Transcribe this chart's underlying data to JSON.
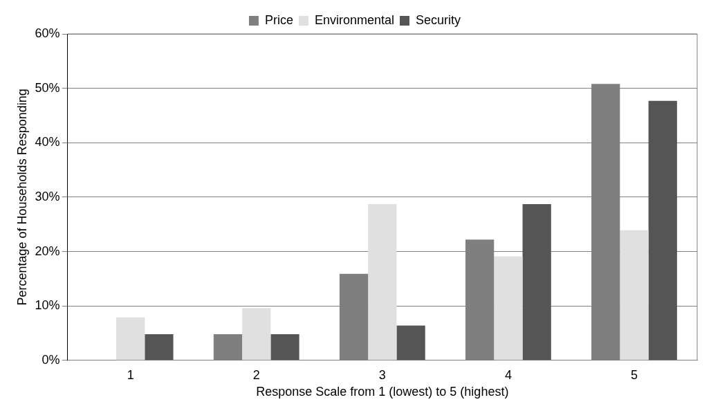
{
  "chart_data": {
    "type": "bar",
    "xlabel": "Response Scale from 1 (lowest) to 5 (highest)",
    "ylabel": "Percentage of Households Responding",
    "categories": [
      "1",
      "2",
      "3",
      "4",
      "5"
    ],
    "series": [
      {
        "name": "Price",
        "color": "#7f7f7f",
        "values": [
          0,
          4.8,
          15.9,
          22.2,
          50.8
        ]
      },
      {
        "name": "Environmental",
        "color": "#e0e0e0",
        "values": [
          7.9,
          9.6,
          28.7,
          19.1,
          23.9
        ]
      },
      {
        "name": "Security",
        "color": "#555555",
        "values": [
          4.8,
          4.8,
          6.4,
          28.7,
          47.7
        ]
      }
    ],
    "ylim": [
      0,
      60
    ],
    "yticks": [
      {
        "value": 0,
        "label": "0%"
      },
      {
        "value": 10,
        "label": "10%"
      },
      {
        "value": 20,
        "label": "20%"
      },
      {
        "value": 30,
        "label": "30%"
      },
      {
        "value": 40,
        "label": "40%"
      },
      {
        "value": 50,
        "label": "50%"
      },
      {
        "value": 60,
        "label": "60%"
      }
    ],
    "grid": "y",
    "legend": "top"
  }
}
